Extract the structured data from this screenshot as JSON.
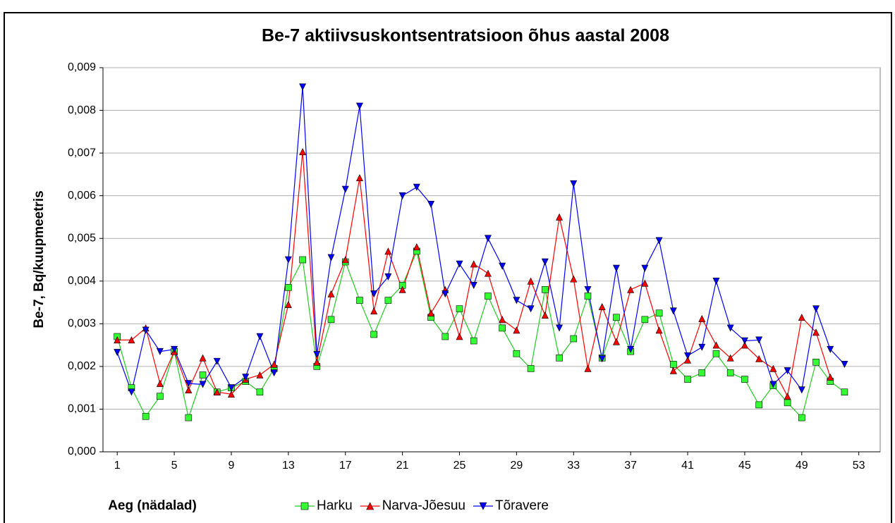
{
  "chart_data": {
    "type": "line",
    "title": "Be-7 aktiivsuskontsentratsioon õhus aastal 2008",
    "x_label": "Aeg (nädalad)",
    "y_label": "Be-7, Bq/kuupmeetris",
    "x": [
      1,
      2,
      3,
      4,
      5,
      6,
      7,
      8,
      9,
      10,
      11,
      12,
      13,
      14,
      15,
      16,
      17,
      18,
      19,
      20,
      21,
      22,
      23,
      24,
      25,
      26,
      27,
      28,
      29,
      30,
      31,
      32,
      33,
      34,
      35,
      36,
      37,
      38,
      39,
      40,
      41,
      42,
      43,
      44,
      45,
      46,
      47,
      48,
      49,
      50,
      51,
      52
    ],
    "xlim": [
      0,
      54.5
    ],
    "xticks": [
      1,
      5,
      9,
      13,
      17,
      21,
      25,
      29,
      33,
      37,
      41,
      45,
      49,
      53
    ],
    "ylim": [
      0,
      0.009
    ],
    "yticks": [
      {
        "value": 0,
        "label": "0,000"
      },
      {
        "value": 0.001,
        "label": "0,001"
      },
      {
        "value": 0.002,
        "label": "0,002"
      },
      {
        "value": 0.003,
        "label": "0,003"
      },
      {
        "value": 0.004,
        "label": "0,004"
      },
      {
        "value": 0.005,
        "label": "0,005"
      },
      {
        "value": 0.006,
        "label": "0,006"
      },
      {
        "value": 0.007,
        "label": "0,007"
      },
      {
        "value": 0.008,
        "label": "0,008"
      },
      {
        "value": 0.009,
        "label": "0,009"
      }
    ],
    "grid": true,
    "legend": "bottom",
    "series": [
      {
        "name": "Harku",
        "color": "#22cc22",
        "fill": "#33ff33",
        "marker": "square",
        "values": [
          0.0027,
          0.0015,
          0.00083,
          0.0013,
          0.00235,
          0.0008,
          0.0018,
          0.0014,
          0.0015,
          0.00165,
          0.0014,
          0.00195,
          0.00385,
          0.0045,
          0.002,
          0.0031,
          0.00445,
          0.00355,
          0.00275,
          0.00355,
          0.0039,
          0.0047,
          0.00315,
          0.0027,
          0.00335,
          0.0026,
          0.00365,
          0.0029,
          0.0023,
          0.00195,
          0.0038,
          0.0022,
          0.00265,
          0.00365,
          0.0022,
          0.00315,
          0.00235,
          0.0031,
          0.00325,
          0.00205,
          0.0017,
          0.00185,
          0.0023,
          0.00185,
          0.0017,
          0.0011,
          0.00155,
          0.00115,
          0.0008,
          0.0021,
          0.00165,
          0.0014
        ]
      },
      {
        "name": "Narva-Jõesuu",
        "color": "#ff0000",
        "fill": "#ff0000",
        "marker": "triangle-up",
        "values": [
          0.00262,
          0.00262,
          0.0029,
          0.0016,
          0.00235,
          0.00145,
          0.0022,
          0.0014,
          0.00135,
          0.0017,
          0.0018,
          0.00205,
          0.00345,
          0.00703,
          0.0021,
          0.0037,
          0.0045,
          0.00642,
          0.0033,
          0.0047,
          0.0038,
          0.0048,
          0.00325,
          0.0038,
          0.0027,
          0.0044,
          0.00418,
          0.0031,
          0.00285,
          0.004,
          0.0032,
          0.0055,
          0.00405,
          0.00195,
          0.0034,
          0.00258,
          0.0038,
          0.00395,
          0.00285,
          0.0019,
          0.00215,
          0.00312,
          0.0025,
          0.0022,
          0.0025,
          0.00218,
          0.00195,
          0.0013,
          0.00315,
          0.0028,
          0.00175,
          null
        ]
      },
      {
        "name": "Tõravere",
        "color": "#0000ff",
        "fill": "#0000ff",
        "marker": "triangle-down",
        "values": [
          0.00233,
          0.0014,
          0.00285,
          0.00235,
          0.0024,
          0.0016,
          0.00158,
          0.00212,
          0.0015,
          0.00175,
          0.0027,
          0.00185,
          0.0045,
          0.00855,
          0.00228,
          0.00455,
          0.00615,
          0.0081,
          0.0037,
          0.0041,
          0.006,
          0.0062,
          0.0058,
          0.0037,
          0.0044,
          0.0039,
          0.005,
          0.00435,
          0.00355,
          0.00335,
          0.00445,
          0.0029,
          0.00628,
          0.0038,
          0.00218,
          0.0043,
          0.0024,
          0.0043,
          0.00495,
          0.0033,
          0.00225,
          0.00245,
          0.004,
          0.0029,
          0.0026,
          0.00262,
          0.00158,
          0.0019,
          0.00145,
          0.00335,
          0.0024,
          0.00205
        ]
      }
    ]
  }
}
